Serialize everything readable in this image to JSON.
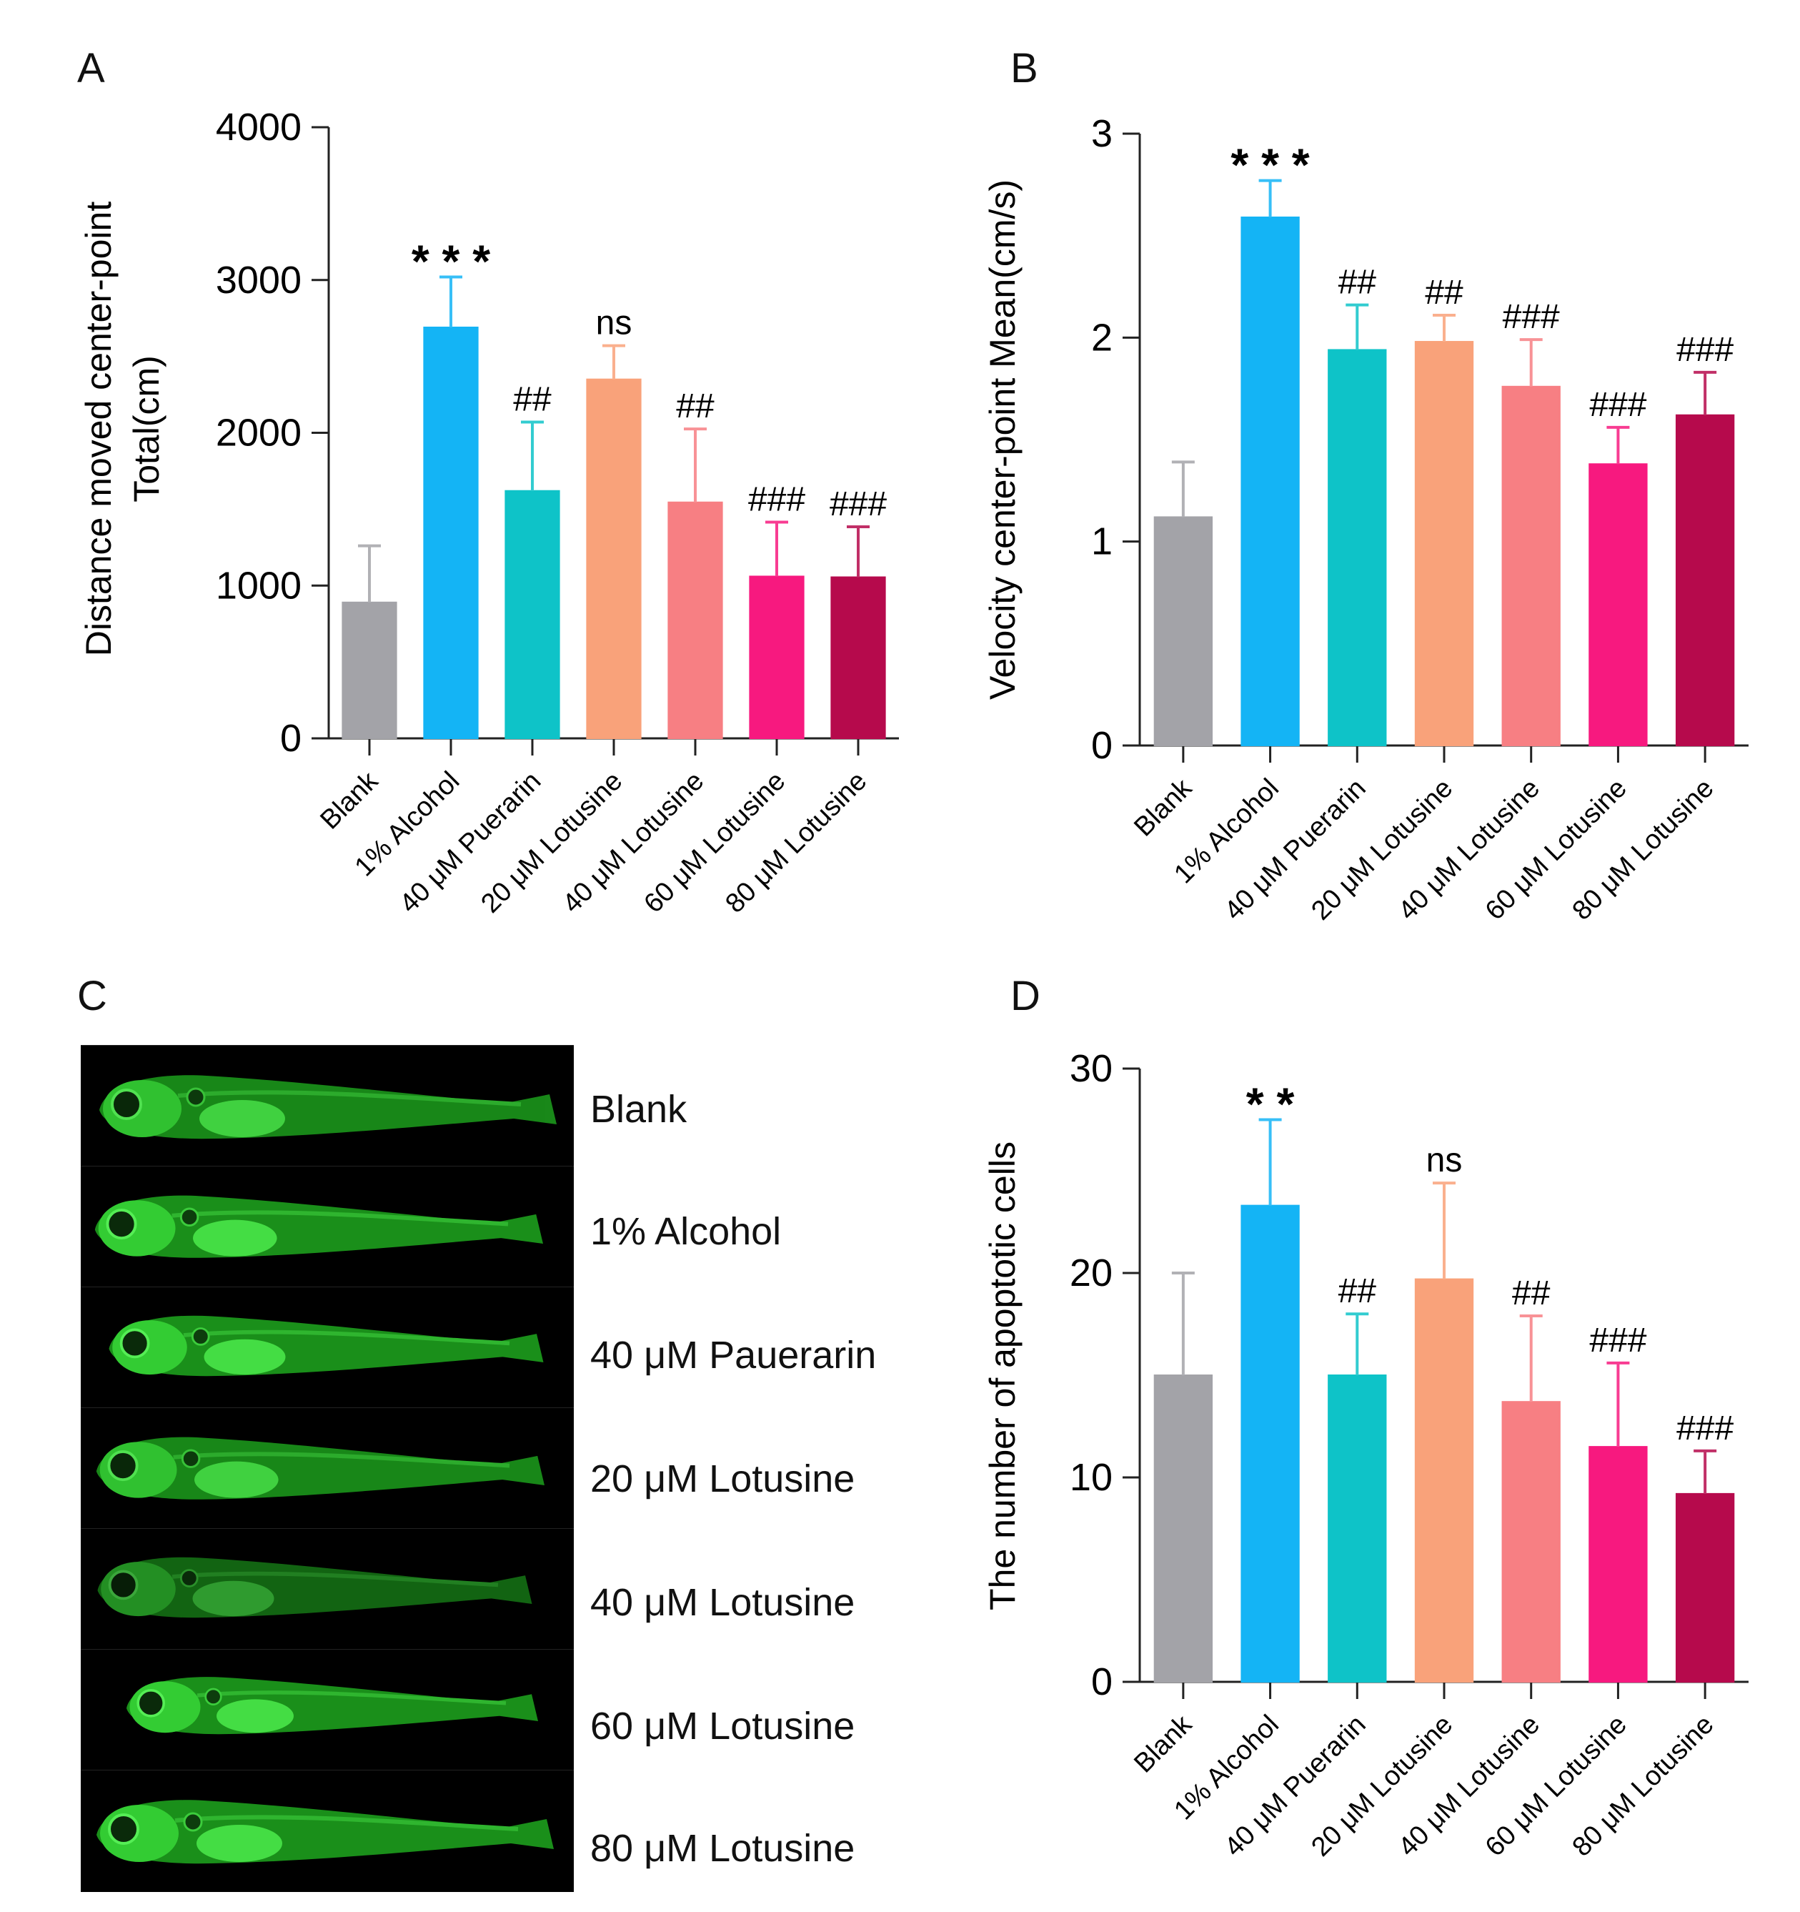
{
  "panels": {
    "A": "A",
    "B": "B",
    "C": "C",
    "D": "D"
  },
  "categories": [
    "Blank",
    "1% Alcohol",
    "40 μM Puerarin",
    "20 μM Lotusine",
    "40 μM Lotusine",
    "60 μM Lotusine",
    "80 μM Lotusine"
  ],
  "colors": [
    "#a3a3a8",
    "#14b4f5",
    "#0ec3c8",
    "#f9a27a",
    "#f77f83",
    "#f7197f",
    "#b60a4c"
  ],
  "chart_data": [
    {
      "id": "A",
      "type": "bar",
      "ylabel_lines": [
        "Distance moved center-point",
        "Total(cm)"
      ],
      "ylim": [
        0,
        4000
      ],
      "yticks": [
        0,
        1000,
        2000,
        3000,
        4000
      ],
      "values": [
        890,
        2690,
        1620,
        2350,
        1545,
        1060,
        1055
      ],
      "errors": [
        370,
        330,
        450,
        220,
        480,
        355,
        330
      ],
      "annotations": [
        "",
        "***",
        "##",
        "ns",
        "##",
        "###",
        "###"
      ]
    },
    {
      "id": "B",
      "type": "bar",
      "ylabel_lines": [
        "Velocity center-point Mean(cm/s)"
      ],
      "ylim": [
        0,
        3
      ],
      "yticks": [
        0,
        1,
        2,
        3
      ],
      "values": [
        1.12,
        2.59,
        1.94,
        1.98,
        1.76,
        1.38,
        1.62
      ],
      "errors": [
        0.27,
        0.18,
        0.22,
        0.13,
        0.23,
        0.18,
        0.21
      ],
      "annotations": [
        "",
        "***",
        "##",
        "##",
        "###",
        "###",
        "###"
      ]
    },
    {
      "id": "D",
      "type": "bar",
      "ylabel_lines": [
        "The number of apoptotic cells"
      ],
      "ylim": [
        0,
        30
      ],
      "yticks": [
        0,
        10,
        20,
        30
      ],
      "values": [
        15.0,
        23.3,
        15.0,
        19.7,
        13.7,
        11.5,
        9.2
      ],
      "errors": [
        5.0,
        4.2,
        3.0,
        4.7,
        4.2,
        4.1,
        2.1
      ],
      "annotations": [
        "",
        "**",
        "##",
        "ns",
        "##",
        "###",
        "###"
      ]
    }
  ],
  "fish_labels": [
    "Blank",
    "1% Alcohol",
    "40 μM Pauerarin",
    "20 μM Lotusine",
    "40 μM Lotusine",
    "60 μM Lotusine",
    "80 μM Lotusine"
  ]
}
